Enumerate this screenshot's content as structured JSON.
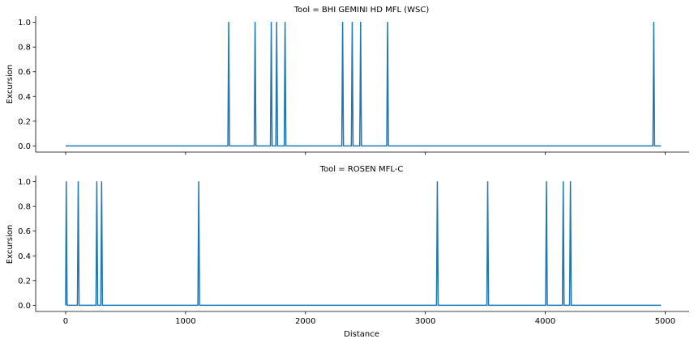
{
  "chart_data": {
    "type": "line",
    "x_label": "Distance",
    "y_label": "Excursion",
    "xlim": [
      -250,
      5200
    ],
    "ylim": [
      -0.05,
      1.05
    ],
    "x_ticks": [
      0,
      1000,
      2000,
      3000,
      4000,
      5000
    ],
    "y_ticks": [
      0.0,
      0.2,
      0.4,
      0.6,
      0.8,
      1.0
    ],
    "y_tick_labels": [
      "0.0",
      "0.2",
      "0.4",
      "0.6",
      "0.8",
      "1.0"
    ],
    "x_extent": [
      0,
      4965
    ],
    "line_color": "#1f77b4",
    "grid": false,
    "panels": [
      {
        "title": "Tool = BHI GEMINI HD MFL (WSC)",
        "spikes_x": [
          1360,
          1580,
          1715,
          1760,
          1830,
          2310,
          2390,
          2460,
          2685,
          4905
        ]
      },
      {
        "title": "Tool = ROSEN MFL-C",
        "spikes_x": [
          5,
          105,
          260,
          300,
          1110,
          3100,
          3520,
          4010,
          4150,
          4210
        ]
      }
    ]
  }
}
